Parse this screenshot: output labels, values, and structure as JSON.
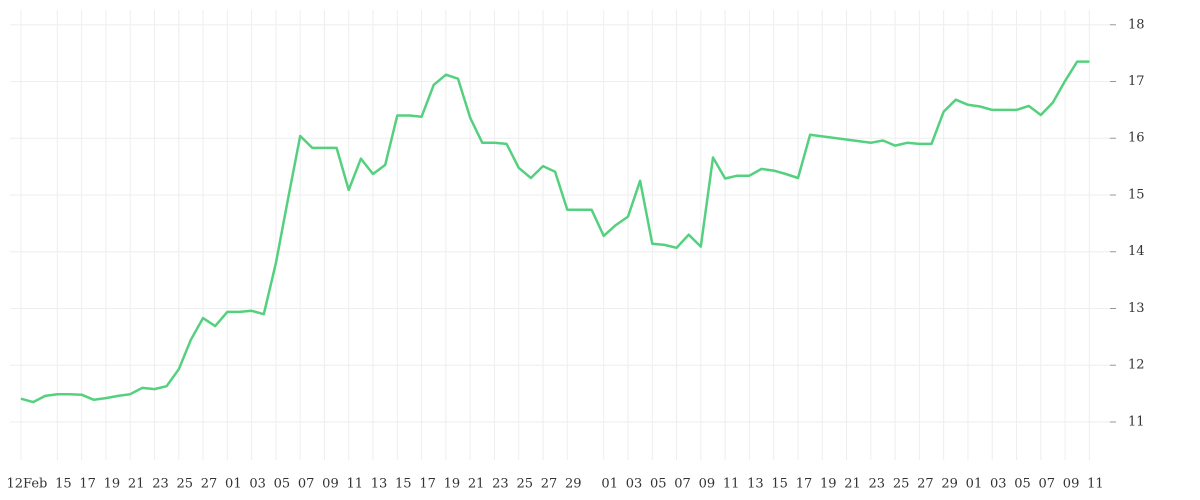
{
  "chart_data": {
    "type": "line",
    "x": [
      0,
      1,
      2,
      3,
      4,
      5,
      6,
      7,
      8,
      9,
      10,
      11,
      12,
      13,
      14,
      15,
      16,
      17,
      18,
      19,
      20,
      21,
      22,
      23,
      24,
      25,
      26,
      27,
      28,
      29,
      30,
      31,
      32,
      33,
      34,
      35,
      36,
      37,
      38,
      39,
      40,
      41,
      42,
      43,
      44,
      45,
      46,
      47,
      48,
      49,
      50,
      51,
      52,
      53,
      54,
      55,
      56,
      57,
      58,
      59,
      60,
      61,
      62,
      63,
      64,
      65,
      70,
      71,
      72,
      73,
      74,
      75,
      76,
      77,
      78,
      79,
      80,
      81,
      82,
      83,
      84,
      85,
      86,
      87,
      88
    ],
    "series": [
      {
        "color": "#55d07f",
        "values": [
          11.41,
          11.35,
          11.46,
          11.49,
          11.49,
          11.48,
          11.39,
          11.42,
          11.46,
          11.49,
          11.6,
          11.58,
          11.63,
          11.93,
          12.45,
          12.83,
          12.69,
          12.94,
          12.94,
          12.96,
          12.9,
          13.8,
          14.93,
          16.04,
          15.83,
          15.83,
          15.83,
          15.09,
          15.64,
          15.37,
          15.53,
          16.4,
          16.4,
          16.38,
          16.94,
          17.12,
          17.05,
          16.36,
          15.92,
          15.92,
          15.9,
          15.48,
          15.3,
          15.51,
          15.41,
          14.74,
          14.74,
          14.74,
          14.28,
          14.47,
          14.62,
          15.25,
          14.14,
          14.12,
          14.07,
          14.3,
          14.09,
          15.66,
          15.29,
          15.34,
          15.34,
          15.46,
          15.43,
          15.37,
          15.3,
          16.06,
          15.92,
          15.96,
          15.87,
          15.92,
          15.9,
          15.9,
          16.47,
          16.68,
          16.59,
          16.56,
          16.5,
          16.5,
          16.5,
          16.57,
          16.41,
          16.63,
          17.01,
          17.35,
          17.35
        ]
      }
    ],
    "xlim": [
      -0.9,
      89.7
    ],
    "xticks": [
      {
        "value": 0,
        "label": "12Feb"
      },
      {
        "value": 3,
        "label": "15"
      },
      {
        "value": 5,
        "label": "17"
      },
      {
        "value": 7,
        "label": "19"
      },
      {
        "value": 9,
        "label": "21"
      },
      {
        "value": 11,
        "label": "23"
      },
      {
        "value": 13,
        "label": "25"
      },
      {
        "value": 15,
        "label": "27"
      },
      {
        "value": 17,
        "label": "01"
      },
      {
        "value": 19,
        "label": "03"
      },
      {
        "value": 21,
        "label": "05"
      },
      {
        "value": 23,
        "label": "07"
      },
      {
        "value": 25,
        "label": "09"
      },
      {
        "value": 27,
        "label": "11"
      },
      {
        "value": 29,
        "label": "13"
      },
      {
        "value": 31,
        "label": "15"
      },
      {
        "value": 33,
        "label": "17"
      },
      {
        "value": 35,
        "label": "19"
      },
      {
        "value": 37,
        "label": "21"
      },
      {
        "value": 39,
        "label": "23"
      },
      {
        "value": 41,
        "label": "25"
      },
      {
        "value": 43,
        "label": "27"
      },
      {
        "value": 45,
        "label": "29"
      },
      {
        "value": 48,
        "label": "01"
      },
      {
        "value": 50,
        "label": "03"
      },
      {
        "value": 52,
        "label": "05"
      },
      {
        "value": 54,
        "label": "07"
      },
      {
        "value": 56,
        "label": "09"
      },
      {
        "value": 58,
        "label": "11"
      },
      {
        "value": 60,
        "label": "13"
      },
      {
        "value": 62,
        "label": "15"
      },
      {
        "value": 64,
        "label": "17"
      },
      {
        "value": 66,
        "label": "19"
      },
      {
        "value": 68,
        "label": "21"
      },
      {
        "value": 70,
        "label": "23"
      },
      {
        "value": 72,
        "label": "25"
      },
      {
        "value": 74,
        "label": "27"
      },
      {
        "value": 76,
        "label": "29"
      },
      {
        "value": 78,
        "label": "01"
      },
      {
        "value": 80,
        "label": "03"
      },
      {
        "value": 82,
        "label": "05"
      },
      {
        "value": 84,
        "label": "07"
      },
      {
        "value": 86,
        "label": "09"
      },
      {
        "value": 88,
        "label": "11"
      }
    ],
    "ylim": [
      10.33,
      18.26
    ],
    "yticks": [
      11,
      12,
      13,
      14,
      15,
      16,
      17,
      18
    ],
    "grid": true
  }
}
